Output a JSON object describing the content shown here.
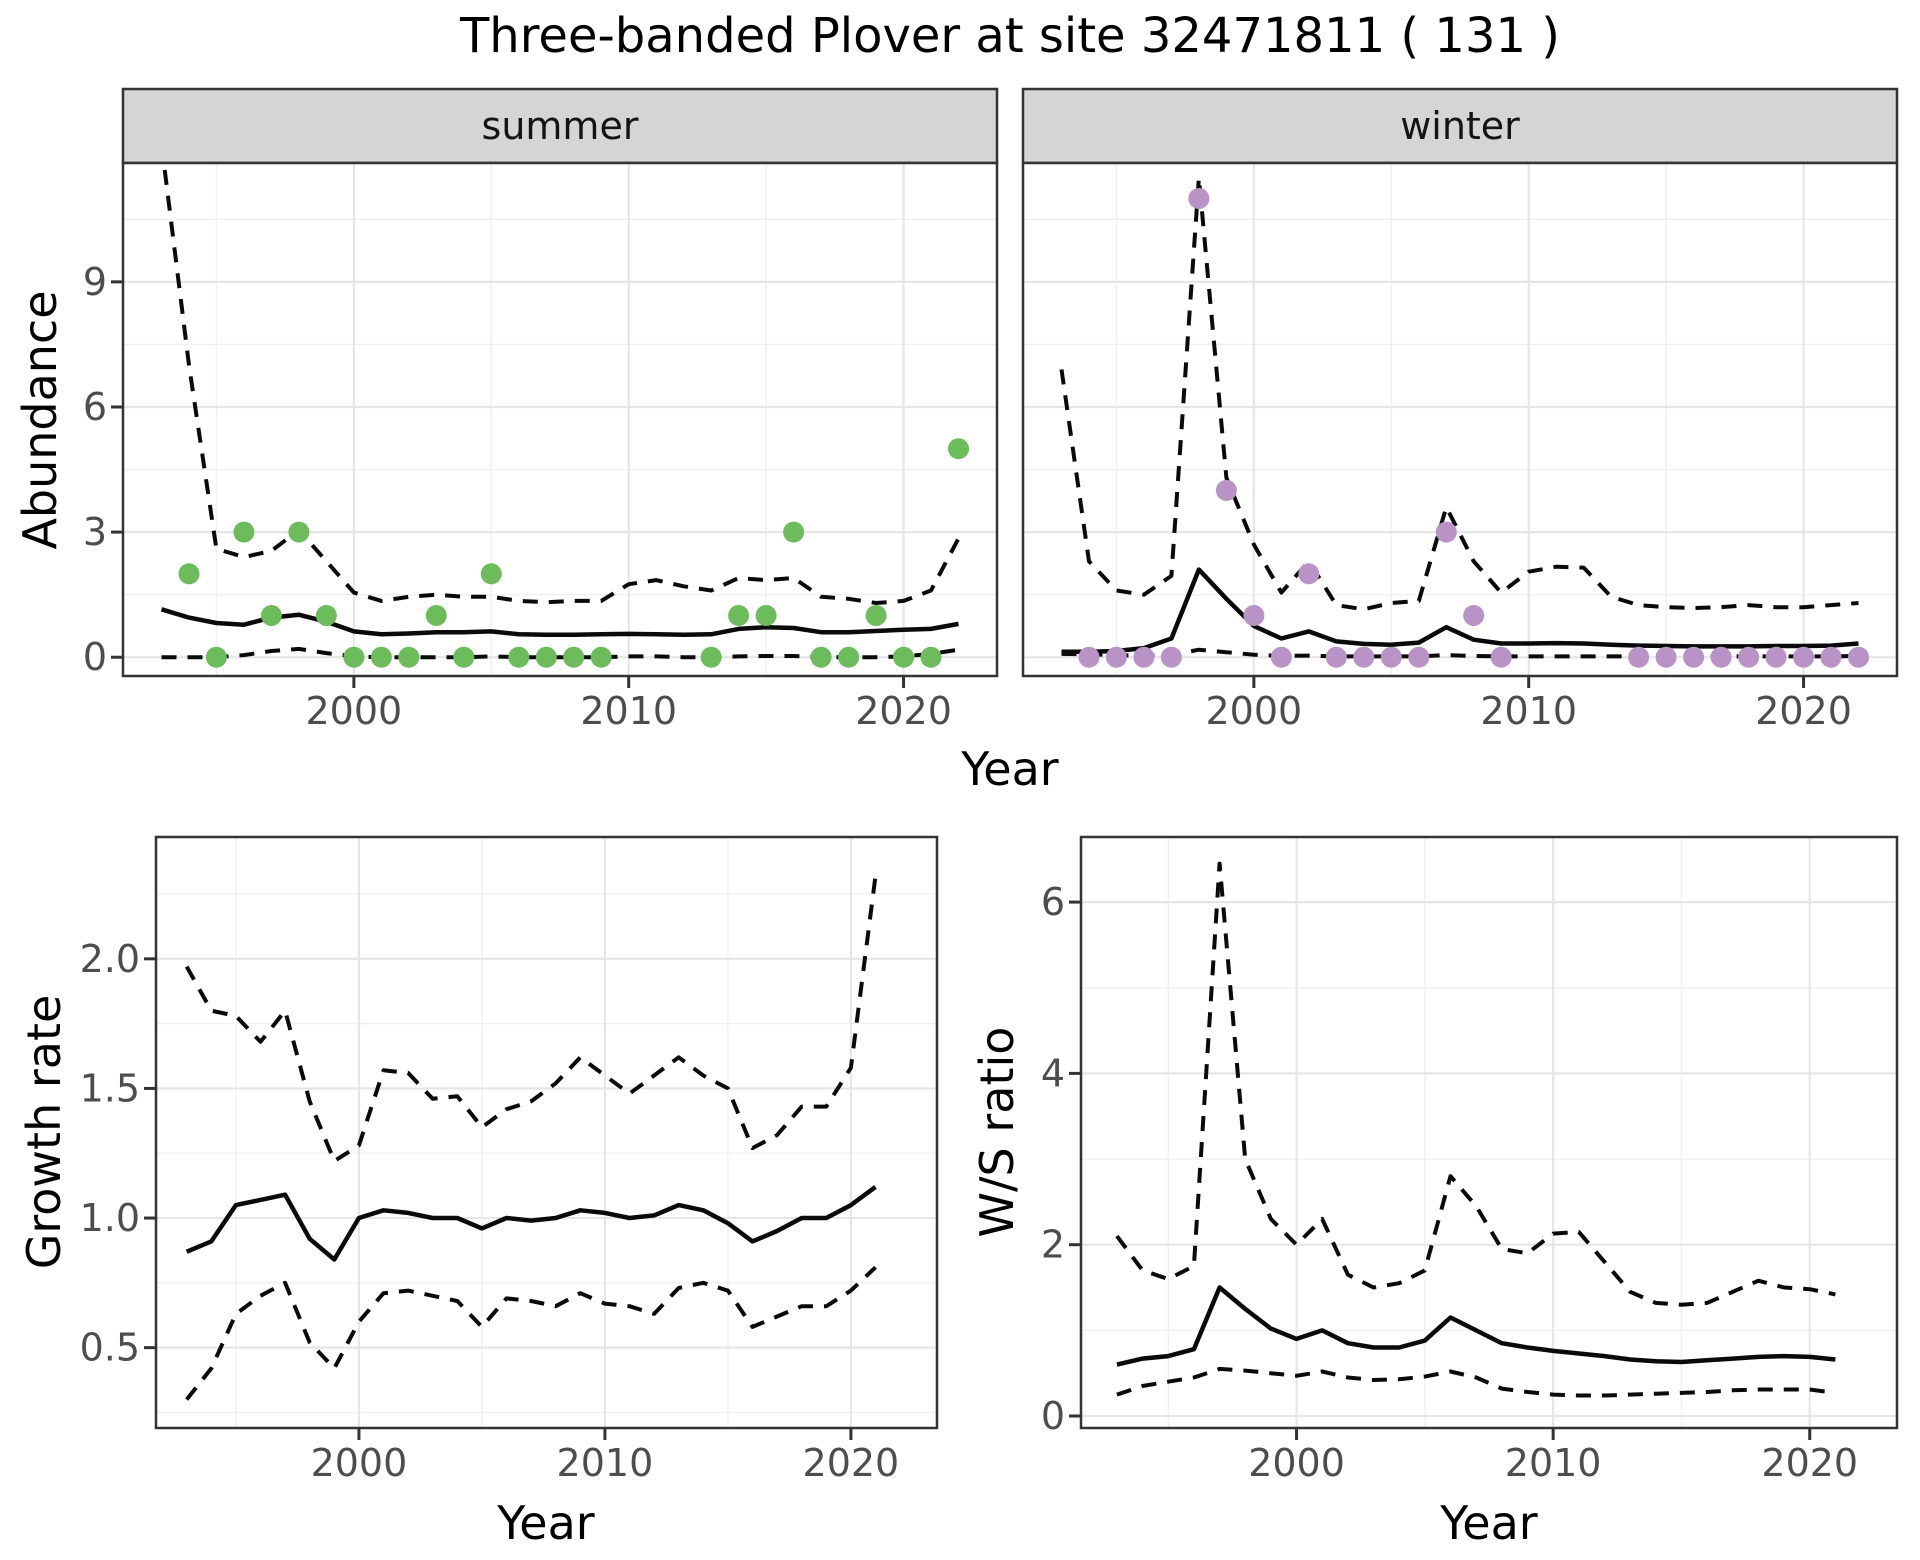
{
  "figure": {
    "title": "Three-banded Plover at site 32471811 ( 131 )"
  },
  "colors": {
    "summer_point": "#6cbc5b",
    "winter_point": "#b992c6",
    "line": "#0a0a0a",
    "border": "#333333",
    "strip_fill": "#d5d5d5",
    "grid_major": "#e6e6e6",
    "grid_minor": "#f0f0f0",
    "tick_mark": "#333333",
    "tick_label": "#4d4d4d",
    "panel_background": "#ffffff"
  },
  "chart_data": [
    {
      "id": "abundance",
      "type": "scatter",
      "xlabel": "Year",
      "ylabel": "Abundance",
      "x_ticks": [
        2000,
        2010,
        2020
      ],
      "x_tick_labels": [
        "2000",
        "2010",
        "2020"
      ],
      "y_ticks": [
        0,
        3,
        6,
        9
      ],
      "y_tick_labels": [
        "0",
        "3",
        "6",
        "9"
      ],
      "xlim": [
        1991.6,
        2023.4
      ],
      "ylim": [
        -0.45,
        11.85
      ],
      "grid": true,
      "legend": "none",
      "years": [
        1993,
        1994,
        1995,
        1996,
        1997,
        1998,
        1999,
        2000,
        2001,
        2002,
        2003,
        2004,
        2005,
        2006,
        2007,
        2008,
        2009,
        2010,
        2011,
        2012,
        2013,
        2014,
        2015,
        2016,
        2017,
        2018,
        2019,
        2020,
        2021,
        2022
      ],
      "facets": [
        {
          "label": "summer",
          "point_color": "#6cbc5b",
          "points": {
            "years": [
              1994,
              1995,
              1996,
              1997,
              1998,
              1999,
              2000,
              2001,
              2002,
              2003,
              2004,
              2005,
              2006,
              2007,
              2008,
              2009,
              2013,
              2014,
              2015,
              2016,
              2017,
              2018,
              2019,
              2020,
              2021,
              2022
            ],
            "values": [
              2,
              0,
              3,
              1,
              3,
              1,
              0,
              0,
              0,
              1,
              0,
              2,
              0,
              0,
              0,
              0,
              0,
              1,
              1,
              3,
              0,
              0,
              1,
              0,
              0,
              5
            ]
          },
          "fit": [
            1.15,
            0.95,
            0.82,
            0.78,
            0.95,
            1.02,
            0.85,
            0.62,
            0.55,
            0.57,
            0.6,
            0.6,
            0.62,
            0.55,
            0.54,
            0.54,
            0.55,
            0.56,
            0.55,
            0.54,
            0.55,
            0.68,
            0.72,
            0.7,
            0.6,
            0.6,
            0.63,
            0.66,
            0.68,
            0.8
          ],
          "upper_ci": [
            12.3,
            7.0,
            2.6,
            2.4,
            2.55,
            3.05,
            2.3,
            1.55,
            1.35,
            1.45,
            1.5,
            1.45,
            1.45,
            1.35,
            1.32,
            1.35,
            1.35,
            1.75,
            1.85,
            1.7,
            1.6,
            1.9,
            1.85,
            1.9,
            1.45,
            1.4,
            1.3,
            1.35,
            1.6,
            2.85
          ],
          "lower_ci": [
            0,
            0,
            0,
            0.05,
            0.15,
            0.2,
            0.1,
            0.02,
            0,
            0,
            0,
            0,
            0.02,
            0,
            0,
            0,
            0,
            0.02,
            0.02,
            0,
            0,
            0.02,
            0.03,
            0.03,
            0,
            0,
            0,
            0.02,
            0.08,
            0.18
          ]
        },
        {
          "label": "winter",
          "point_color": "#b992c6",
          "points": {
            "years": [
              1994,
              1995,
              1996,
              1997,
              1998,
              1999,
              2000,
              2001,
              2002,
              2003,
              2004,
              2005,
              2006,
              2007,
              2008,
              2009,
              2014,
              2015,
              2016,
              2017,
              2018,
              2019,
              2020,
              2021,
              2022
            ],
            "values": [
              0,
              0,
              0,
              0,
              11,
              4,
              1,
              0,
              2,
              0,
              0,
              0,
              0,
              3,
              1,
              0,
              0,
              0,
              0,
              0,
              0,
              0,
              0,
              0,
              0
            ]
          },
          "fit": [
            0.13,
            0.13,
            0.15,
            0.22,
            0.45,
            2.1,
            1.4,
            0.75,
            0.45,
            0.62,
            0.38,
            0.32,
            0.3,
            0.35,
            0.72,
            0.42,
            0.33,
            0.33,
            0.34,
            0.33,
            0.3,
            0.28,
            0.27,
            0.26,
            0.26,
            0.26,
            0.27,
            0.27,
            0.28,
            0.33
          ],
          "upper_ci": [
            6.9,
            2.3,
            1.6,
            1.5,
            1.95,
            11.5,
            4.3,
            2.7,
            1.55,
            2.3,
            1.25,
            1.15,
            1.3,
            1.35,
            3.6,
            2.3,
            1.55,
            2.05,
            2.17,
            2.15,
            1.45,
            1.25,
            1.2,
            1.18,
            1.2,
            1.25,
            1.2,
            1.2,
            1.25,
            1.3
          ],
          "lower_ci": [
            0.08,
            0.07,
            0.05,
            0.03,
            0.05,
            0.18,
            0.12,
            0.06,
            0.03,
            0.04,
            0.02,
            0.02,
            0.02,
            0.02,
            0.05,
            0.03,
            0.02,
            0.02,
            0.02,
            0.02,
            0.02,
            0.02,
            0.02,
            0.02,
            0.02,
            0.02,
            0.02,
            0.02,
            0.02,
            0.03
          ]
        }
      ]
    },
    {
      "id": "growth_rate",
      "type": "line",
      "xlabel": "Year",
      "ylabel": "Growth rate",
      "x_ticks": [
        2000,
        2010,
        2020
      ],
      "x_tick_labels": [
        "2000",
        "2010",
        "2020"
      ],
      "y_ticks": [
        0.5,
        1.0,
        1.5,
        2.0
      ],
      "y_tick_labels": [
        "0.5",
        "1.0",
        "1.5",
        "2.0"
      ],
      "xlim": [
        1991.75,
        2023.5
      ],
      "ylim": [
        0.19,
        2.47
      ],
      "grid": true,
      "legend": "none",
      "years": [
        1993,
        1994,
        1995,
        1996,
        1997,
        1998,
        1999,
        2000,
        2001,
        2002,
        2003,
        2004,
        2005,
        2006,
        2007,
        2008,
        2009,
        2010,
        2011,
        2012,
        2013,
        2014,
        2015,
        2016,
        2017,
        2018,
        2019,
        2020,
        2021
      ],
      "series": [
        {
          "name": "estimate",
          "style": "solid",
          "values": [
            0.87,
            0.91,
            1.05,
            1.07,
            1.09,
            0.92,
            0.84,
            1.0,
            1.03,
            1.02,
            1.0,
            1.0,
            0.96,
            1.0,
            0.99,
            1.0,
            1.03,
            1.02,
            1.0,
            1.01,
            1.05,
            1.03,
            0.98,
            0.91,
            0.95,
            1.0,
            1.0,
            1.05,
            1.12
          ]
        },
        {
          "name": "upper_ci",
          "style": "dashed",
          "values": [
            1.97,
            1.8,
            1.78,
            1.68,
            1.8,
            1.45,
            1.22,
            1.28,
            1.57,
            1.56,
            1.46,
            1.47,
            1.35,
            1.42,
            1.45,
            1.52,
            1.62,
            1.55,
            1.48,
            1.55,
            1.62,
            1.55,
            1.5,
            1.27,
            1.32,
            1.43,
            1.43,
            1.58,
            2.32
          ]
        },
        {
          "name": "lower_ci",
          "style": "dashed",
          "values": [
            0.3,
            0.42,
            0.63,
            0.7,
            0.75,
            0.52,
            0.42,
            0.6,
            0.71,
            0.72,
            0.7,
            0.68,
            0.58,
            0.69,
            0.68,
            0.66,
            0.71,
            0.67,
            0.66,
            0.63,
            0.73,
            0.75,
            0.72,
            0.58,
            0.62,
            0.66,
            0.66,
            0.72,
            0.81
          ]
        }
      ]
    },
    {
      "id": "ws_ratio",
      "type": "line",
      "xlabel": "Year",
      "ylabel": "W/S ratio",
      "x_ticks": [
        2000,
        2010,
        2020
      ],
      "x_tick_labels": [
        "2000",
        "2010",
        "2020"
      ],
      "y_ticks": [
        0,
        2,
        4,
        6
      ],
      "y_tick_labels": [
        "0",
        "2",
        "4",
        "6"
      ],
      "xlim": [
        1991.6,
        2023.4
      ],
      "ylim": [
        -0.14,
        6.76
      ],
      "grid": true,
      "legend": "none",
      "years": [
        1993,
        1994,
        1995,
        1996,
        1997,
        1998,
        1999,
        2000,
        2001,
        2002,
        2003,
        2004,
        2005,
        2006,
        2007,
        2008,
        2009,
        2010,
        2011,
        2012,
        2013,
        2014,
        2015,
        2016,
        2017,
        2018,
        2019,
        2020,
        2021
      ],
      "series": [
        {
          "name": "estimate",
          "style": "solid",
          "values": [
            0.6,
            0.67,
            0.7,
            0.78,
            1.5,
            1.25,
            1.02,
            0.9,
            1.0,
            0.85,
            0.8,
            0.8,
            0.88,
            1.15,
            1.0,
            0.85,
            0.8,
            0.76,
            0.73,
            0.7,
            0.66,
            0.64,
            0.63,
            0.65,
            0.67,
            0.69,
            0.7,
            0.69,
            0.66
          ]
        },
        {
          "name": "upper_ci",
          "style": "dashed",
          "values": [
            2.1,
            1.7,
            1.6,
            1.75,
            6.45,
            3.0,
            2.3,
            2.0,
            2.3,
            1.65,
            1.5,
            1.55,
            1.7,
            2.8,
            2.45,
            1.95,
            1.9,
            2.13,
            2.15,
            1.8,
            1.45,
            1.32,
            1.3,
            1.32,
            1.45,
            1.58,
            1.5,
            1.48,
            1.42
          ]
        },
        {
          "name": "lower_ci",
          "style": "dashed",
          "values": [
            0.25,
            0.35,
            0.4,
            0.45,
            0.55,
            0.53,
            0.5,
            0.47,
            0.52,
            0.45,
            0.42,
            0.43,
            0.46,
            0.52,
            0.45,
            0.32,
            0.28,
            0.25,
            0.24,
            0.24,
            0.25,
            0.26,
            0.27,
            0.28,
            0.3,
            0.31,
            0.31,
            0.31,
            0.27
          ]
        }
      ]
    }
  ]
}
